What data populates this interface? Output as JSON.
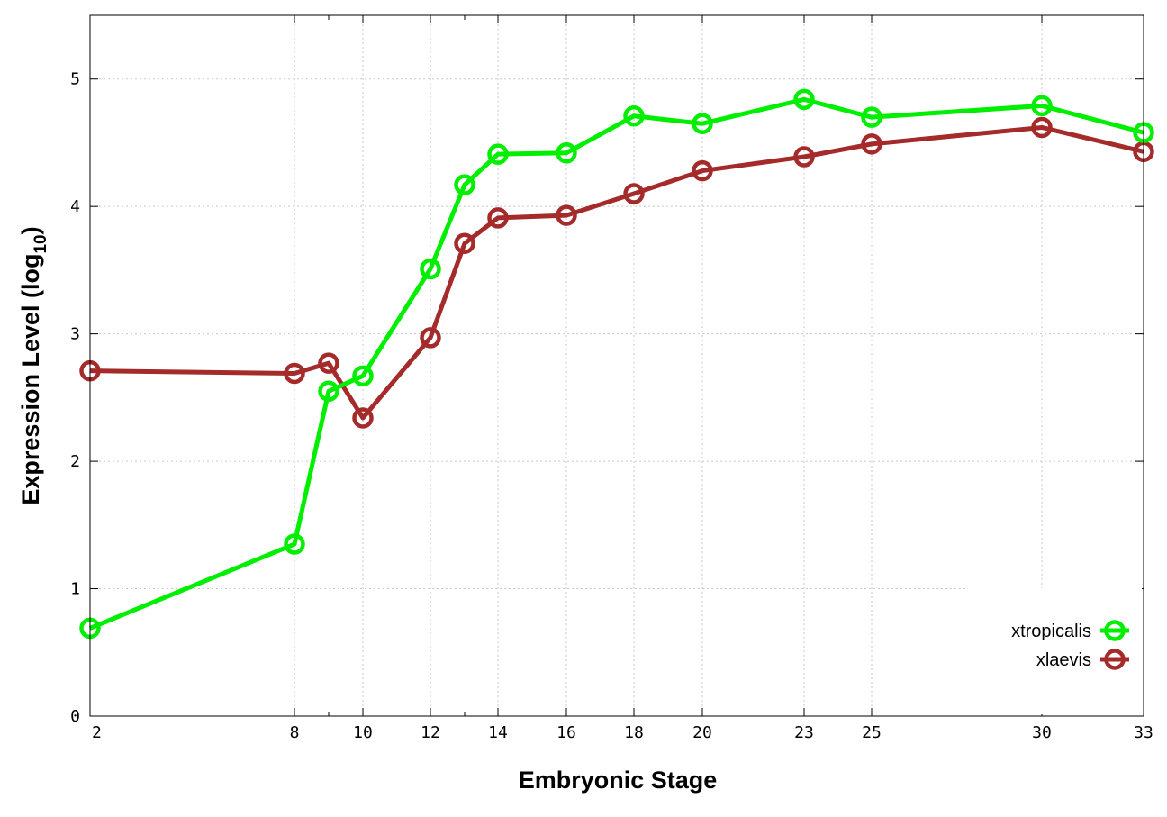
{
  "chart_data": {
    "type": "line",
    "xlabel": "Embryonic Stage",
    "ylabel": "Expression Level (log",
    "ylabel_subscript": "10",
    "ylabel_close": ")",
    "ylim": [
      0,
      5.5
    ],
    "x_ticks": [
      "2",
      "8",
      "10",
      "12",
      "14",
      "16",
      "18",
      "20",
      "23",
      "25",
      "30",
      "33"
    ],
    "x_ticks_minor": [
      "9",
      "13"
    ],
    "y_ticks": [
      "0",
      "1",
      "2",
      "3",
      "4",
      "5"
    ],
    "grid": true,
    "legend_position": "bottom-right",
    "series": [
      {
        "name": "xtropicalis",
        "color": "#00ee00",
        "points": [
          {
            "x": 2,
            "y": 0.69
          },
          {
            "x": 8,
            "y": 1.35
          },
          {
            "x": 9,
            "y": 2.55
          },
          {
            "x": 10,
            "y": 2.67
          },
          {
            "x": 12,
            "y": 3.51
          },
          {
            "x": 13,
            "y": 4.17
          },
          {
            "x": 14,
            "y": 4.41
          },
          {
            "x": 16,
            "y": 4.42
          },
          {
            "x": 18,
            "y": 4.71
          },
          {
            "x": 20,
            "y": 4.65
          },
          {
            "x": 23,
            "y": 4.84
          },
          {
            "x": 25,
            "y": 4.7
          },
          {
            "x": 30,
            "y": 4.79
          },
          {
            "x": 33,
            "y": 4.58
          }
        ]
      },
      {
        "name": "xlaevis",
        "color": "#a52a2a",
        "points": [
          {
            "x": 2,
            "y": 2.71
          },
          {
            "x": 8,
            "y": 2.69
          },
          {
            "x": 9,
            "y": 2.77
          },
          {
            "x": 10,
            "y": 2.34
          },
          {
            "x": 12,
            "y": 2.97
          },
          {
            "x": 13,
            "y": 3.71
          },
          {
            "x": 14,
            "y": 3.91
          },
          {
            "x": 16,
            "y": 3.93
          },
          {
            "x": 18,
            "y": 4.1
          },
          {
            "x": 20,
            "y": 4.28
          },
          {
            "x": 23,
            "y": 4.39
          },
          {
            "x": 25,
            "y": 4.49
          },
          {
            "x": 30,
            "y": 4.62
          },
          {
            "x": 33,
            "y": 4.43
          }
        ]
      }
    ]
  }
}
